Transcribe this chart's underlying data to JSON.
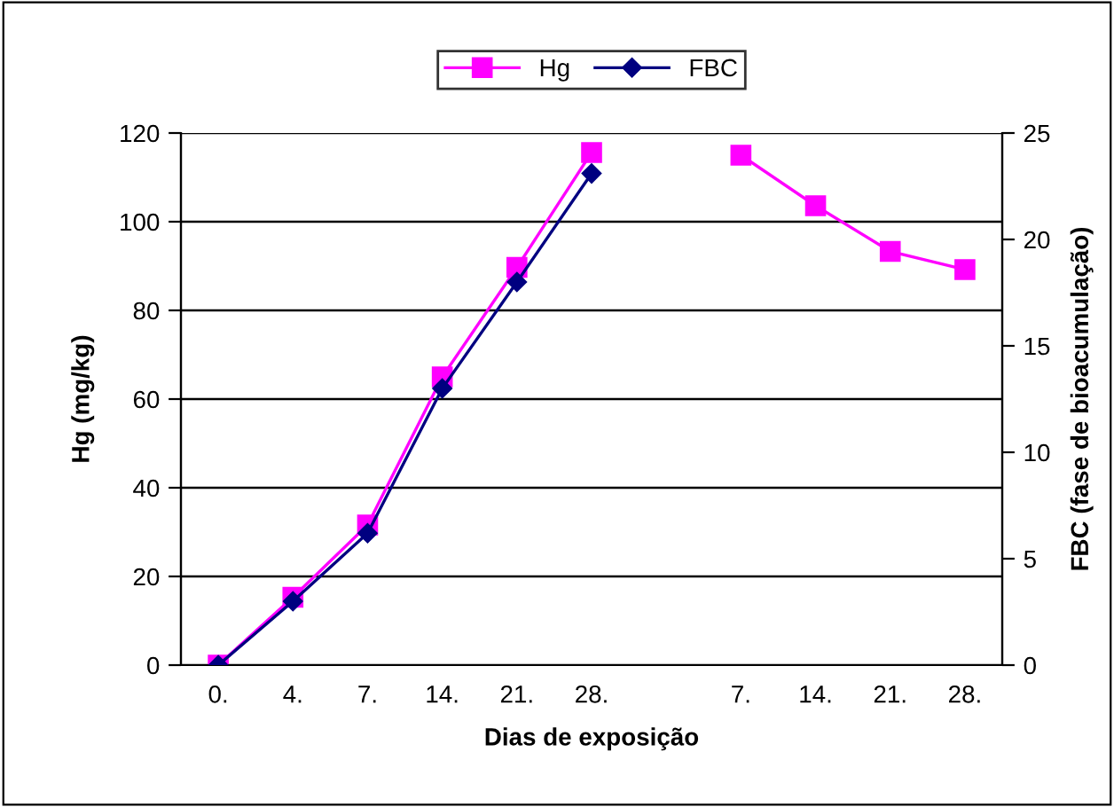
{
  "chart_data": {
    "type": "line",
    "xlabel": "Dias de exposição",
    "ylabel": "Hg (mg/kg)",
    "y2label": "FBC (fase de bioacumulação)",
    "categories": [
      "0.",
      "4.",
      "7.",
      "14.",
      "21.",
      "28.",
      null,
      "7.",
      "14.",
      "21.",
      "28."
    ],
    "series": [
      {
        "name": "Hg",
        "color": "#ff00ff",
        "marker": "square",
        "values": [
          0,
          15.3,
          31.6,
          65,
          89.7,
          115.6,
          null,
          115,
          103.6,
          93.3,
          89.2
        ]
      },
      {
        "name": "FBC",
        "color": "#000080",
        "marker": "diamond",
        "axis": "y2",
        "values": [
          0,
          3,
          6.2,
          13,
          18,
          23.1,
          null,
          null,
          null,
          null,
          null
        ]
      }
    ],
    "ylim": [
      0,
      120
    ],
    "yticks": [
      0,
      20,
      40,
      60,
      80,
      100,
      120
    ],
    "y2lim": [
      0,
      25
    ],
    "y2ticks": [
      0,
      5,
      10,
      15,
      20,
      25
    ],
    "grid": "y",
    "legend": "top",
    "line_style": "solid"
  }
}
